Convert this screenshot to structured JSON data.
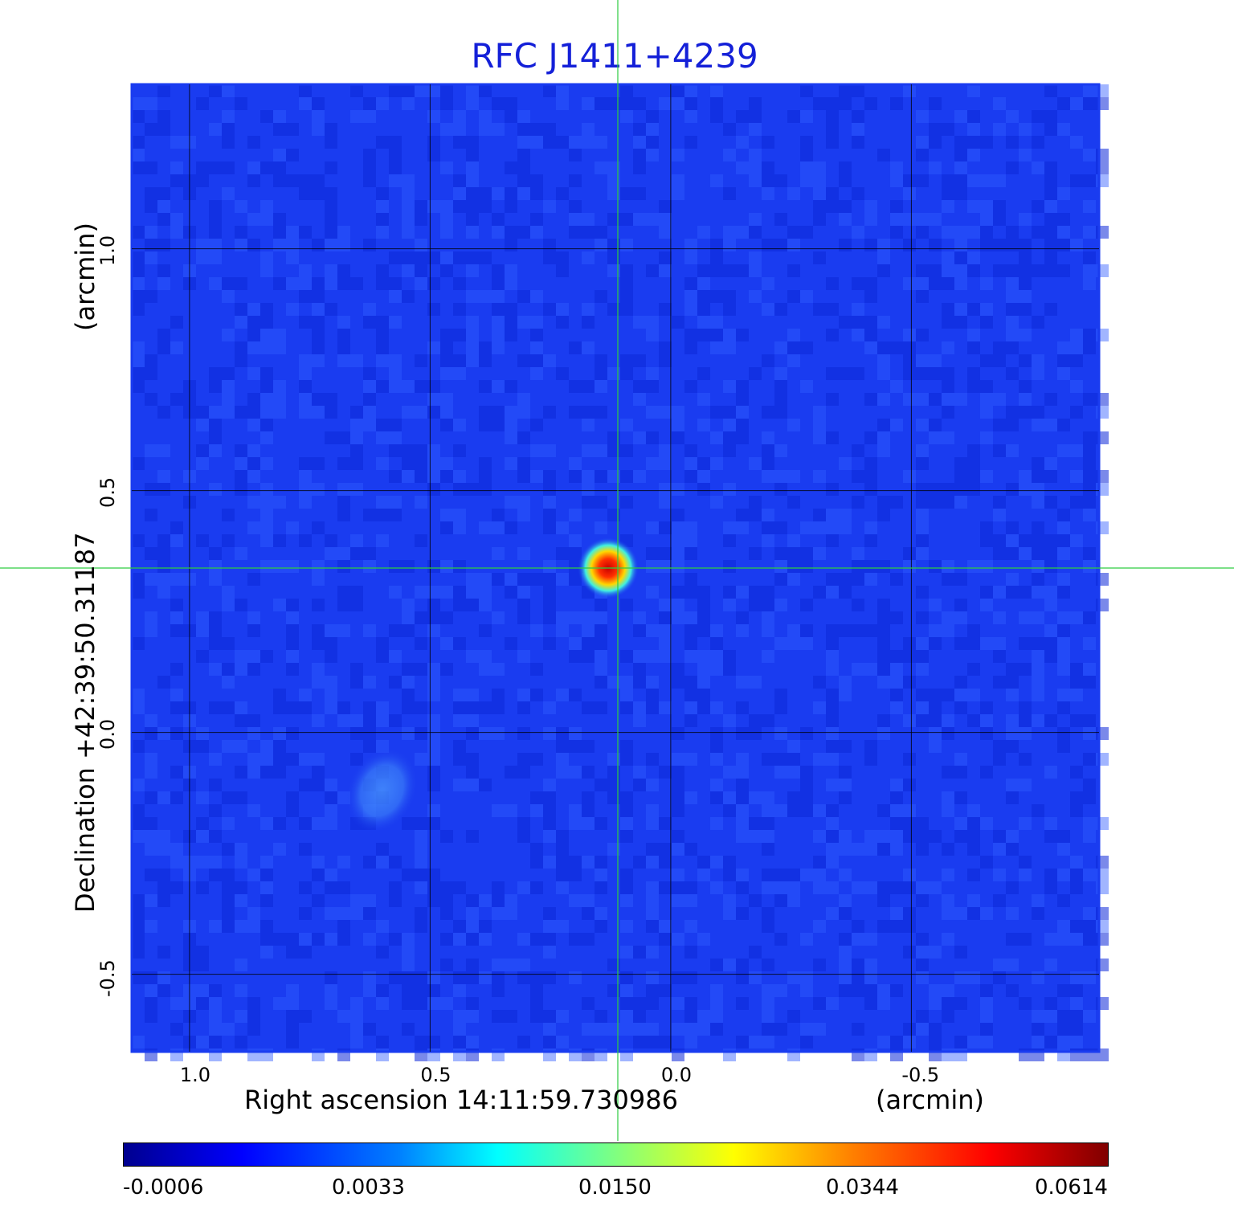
{
  "chart_data": {
    "type": "heatmap",
    "title": "RFC J1411+4239",
    "xlabel": "Right ascension  14:11:59.730986",
    "xunit": "(arcmin)",
    "ylabel": "Declination  +42:39:50.31187",
    "yunit": "(arcmin)",
    "xlim": [
      1.12,
      -0.89
    ],
    "ylim": [
      -0.66,
      1.34
    ],
    "xticks": [
      "1.0",
      "0.5",
      "0.0",
      "-0.5"
    ],
    "xtick_values": [
      1.0,
      0.5,
      0.0,
      -0.5
    ],
    "yticks": [
      "-0.5",
      "0.0",
      "0.5",
      "1.0"
    ],
    "ytick_values": [
      -0.5,
      0.0,
      0.5,
      1.0
    ],
    "grid": true,
    "crosshair": {
      "x": 0.11,
      "y": 0.34,
      "color": "#2ecc40"
    },
    "sources": [
      {
        "x": 0.13,
        "y": 0.34,
        "peak": 0.0614
      },
      {
        "x": 0.6,
        "y": -0.12,
        "peak": 0.0045
      }
    ],
    "colormap": "jet",
    "colorbar_ticks": [
      "-0.0006",
      "0.0033",
      "0.0150",
      "0.0344",
      "0.0614"
    ],
    "colors": {
      "title": "#1420d8",
      "background_map": "#1a3cf0",
      "grid": "#000000"
    }
  }
}
